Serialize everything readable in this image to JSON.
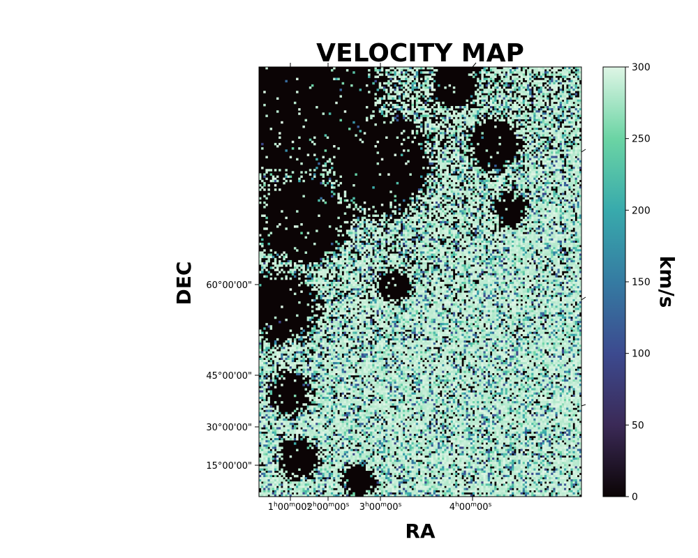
{
  "chart_data": {
    "type": "heatmap",
    "title": "VELOCITY MAP",
    "xlabel": "RA",
    "ylabel": "DEC",
    "colorbar": {
      "label": "km/s",
      "range": [
        0,
        300
      ],
      "ticks": [
        "0",
        "50",
        "100",
        "150",
        "200",
        "250",
        "300"
      ],
      "colormap": "mako-like (dark to light green)",
      "colors": [
        "#0b0405",
        "#3b2a57",
        "#3c4a8f",
        "#357ba2",
        "#38aaac",
        "#6bd4a4",
        "#def5e5"
      ]
    },
    "x_ticks": [
      {
        "h": "1",
        "m": "00",
        "s": "00"
      },
      {
        "h": "2",
        "m": "00",
        "s": "00"
      },
      {
        "h": "3",
        "m": "00",
        "s": "00"
      },
      {
        "h": "4",
        "m": "00",
        "s": "00"
      }
    ],
    "y_ticks": [
      "15°00'00\"",
      "30°00'00\"",
      "45°00'00\"",
      "60°00'00\""
    ],
    "grid": false,
    "note_cells": "pixel grid ~148 x 198 cells; low velocity (~0) voids at upper-left, high velocity (~280-300) across lower-right"
  }
}
